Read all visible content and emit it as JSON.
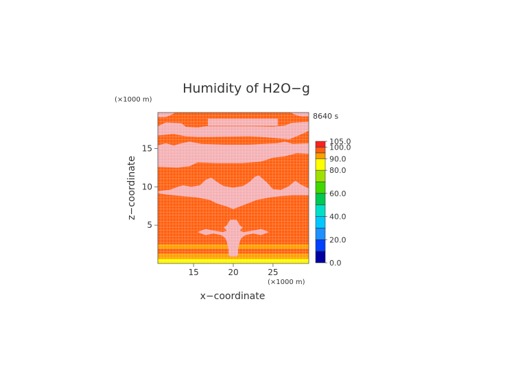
{
  "chart_data": {
    "type": "heatmap",
    "title": "Humidity of H2O−g",
    "xlabel": "x−coordinate",
    "ylabel": "z−coordinate",
    "x_unit": "(×1000 m)",
    "y_unit": "(×1000 m)",
    "time_label": "8640 s",
    "xlim": [
      10.5,
      29.5
    ],
    "ylim": [
      0,
      19.7
    ],
    "x_ticks": [
      "15",
      "20",
      "25"
    ],
    "x_tick_values": [
      15,
      20,
      25
    ],
    "y_ticks": [
      "5",
      "10",
      "15"
    ],
    "y_tick_values": [
      5,
      10,
      15
    ],
    "grid": true,
    "grid_x": [
      10.5,
      10.88,
      11.26,
      11.64,
      12.02,
      12.4,
      12.78,
      13.16,
      13.54,
      13.92,
      14.3,
      14.68,
      15.06,
      15.44,
      15.82,
      16.2,
      16.58,
      16.96,
      17.34,
      17.72,
      18.1,
      18.48,
      18.86,
      19.24,
      19.62,
      20.0,
      20.38,
      20.76,
      21.14,
      21.52,
      21.9,
      22.28,
      22.66,
      23.04,
      23.42,
      23.8,
      24.18,
      24.56,
      24.94,
      25.32,
      25.7,
      26.08,
      26.46,
      26.84,
      27.22,
      27.6,
      27.98,
      28.36,
      28.74,
      29.12,
      29.5
    ],
    "grid_z": [
      0.0,
      0.39,
      0.79,
      1.18,
      1.58,
      1.97,
      2.36,
      2.76,
      3.15,
      3.55,
      3.94,
      4.33,
      4.73,
      5.12,
      5.52,
      5.91,
      6.3,
      6.7,
      7.09,
      7.49,
      7.88,
      8.27,
      8.67,
      9.06,
      9.46,
      9.85,
      10.24,
      10.64,
      11.03,
      11.43,
      11.82,
      12.21,
      12.61,
      13.0,
      13.4,
      13.79,
      14.18,
      14.58,
      14.97,
      15.37,
      15.76,
      16.15,
      16.55,
      16.94,
      17.34,
      17.73,
      18.12,
      18.52,
      18.91,
      19.31,
      19.7
    ],
    "colorbar": {
      "levels": [
        0,
        10,
        20,
        30,
        40,
        50,
        60,
        70,
        80,
        90,
        95,
        100,
        105
      ],
      "colors": [
        "#0000a0",
        "#0040ff",
        "#1e90ff",
        "#00c8ff",
        "#00e0c8",
        "#00c850",
        "#40d800",
        "#a0e000",
        "#ffff00",
        "#ffa000",
        "#ff6010",
        "#ff2020",
        "#ffffff"
      ],
      "tick_labels": [
        "0.0",
        "20.0",
        "40.0",
        "60.0",
        "80.0",
        "90.0",
        "100.0",
        "105.0"
      ],
      "tick_values": [
        0,
        20,
        40,
        60,
        80,
        90,
        100,
        105
      ]
    },
    "background_value": 97,
    "bands": [
      {
        "z0": 0.0,
        "z1": 0.2,
        "x0": 10.5,
        "x1": 29.5,
        "value": 82
      },
      {
        "z0": 0.2,
        "z1": 0.6,
        "x0": 10.5,
        "x1": 29.5,
        "value": 88
      },
      {
        "z0": 0.6,
        "z1": 1.3,
        "x0": 10.5,
        "x1": 29.5,
        "value": 92
      },
      {
        "z0": 1.3,
        "z1": 1.9,
        "x0": 10.5,
        "x1": 29.5,
        "value": 96
      },
      {
        "z0": 1.9,
        "z1": 2.5,
        "x0": 10.5,
        "x1": 29.5,
        "value": 92
      },
      {
        "z0": 2.5,
        "z1": 2.8,
        "x0": 10.5,
        "x1": 29.5,
        "value": 96
      }
    ],
    "saturated_regions_value": 102,
    "saturated_regions": [
      [
        [
          10.5,
          17.9
        ],
        [
          11.5,
          18.4
        ],
        [
          13.5,
          18.3
        ],
        [
          14.0,
          17.85
        ],
        [
          15.5,
          17.75
        ],
        [
          16.5,
          17.9
        ],
        [
          22.0,
          17.9
        ],
        [
          25.0,
          17.85
        ],
        [
          26.5,
          18.0
        ],
        [
          27.3,
          18.35
        ],
        [
          29.5,
          18.5
        ],
        [
          29.5,
          17.3
        ],
        [
          28.0,
          16.6
        ],
        [
          27.0,
          16.2
        ],
        [
          25.0,
          16.4
        ],
        [
          22.0,
          16.6
        ],
        [
          17.0,
          16.5
        ],
        [
          15.5,
          16.5
        ],
        [
          14.0,
          16.6
        ],
        [
          12.5,
          16.9
        ],
        [
          10.5,
          16.7
        ]
      ],
      [
        [
          10.5,
          15.4
        ],
        [
          11.5,
          15.7
        ],
        [
          12.5,
          15.4
        ],
        [
          13.5,
          15.7
        ],
        [
          14.5,
          15.9
        ],
        [
          16.0,
          15.6
        ],
        [
          19.0,
          15.5
        ],
        [
          22.0,
          15.5
        ],
        [
          25.5,
          15.7
        ],
        [
          26.5,
          15.9
        ],
        [
          27.5,
          15.6
        ],
        [
          29.5,
          15.7
        ],
        [
          29.5,
          14.3
        ],
        [
          28.0,
          14.4
        ],
        [
          26.5,
          14.0
        ],
        [
          25.0,
          13.8
        ],
        [
          23.5,
          13.3
        ],
        [
          21.0,
          13.1
        ],
        [
          18.0,
          13.1
        ],
        [
          15.5,
          13.2
        ],
        [
          14.5,
          12.7
        ],
        [
          13.0,
          12.5
        ],
        [
          10.5,
          12.6
        ]
      ],
      [
        [
          16.8,
          17.95
        ],
        [
          16.8,
          18.9
        ],
        [
          25.6,
          18.9
        ],
        [
          25.6,
          17.95
        ]
      ],
      [
        [
          10.5,
          19.1
        ],
        [
          10.5,
          19.7
        ],
        [
          12.7,
          19.7
        ],
        [
          12.2,
          19.4
        ],
        [
          11.5,
          19.1
        ]
      ],
      [
        [
          29.5,
          19.2
        ],
        [
          29.5,
          19.7
        ],
        [
          27.2,
          19.7
        ],
        [
          27.8,
          19.4
        ],
        [
          28.5,
          19.2
        ]
      ],
      [
        [
          10.5,
          9.2
        ],
        [
          11.5,
          9.0
        ],
        [
          13.5,
          8.8
        ],
        [
          15.5,
          8.6
        ],
        [
          17.0,
          8.3
        ],
        [
          18.0,
          7.8
        ],
        [
          19.0,
          7.5
        ],
        [
          20.0,
          7.1
        ],
        [
          21.0,
          7.5
        ],
        [
          22.0,
          7.9
        ],
        [
          23.0,
          8.3
        ],
        [
          24.5,
          8.6
        ],
        [
          26.0,
          8.8
        ],
        [
          27.5,
          8.9
        ],
        [
          29.5,
          8.9
        ],
        [
          29.5,
          9.8
        ],
        [
          28.5,
          10.3
        ],
        [
          27.8,
          10.8
        ],
        [
          27.0,
          10.1
        ],
        [
          26.0,
          9.6
        ],
        [
          25.0,
          9.7
        ],
        [
          24.2,
          10.6
        ],
        [
          23.2,
          11.5
        ],
        [
          22.7,
          11.3
        ],
        [
          22.0,
          10.6
        ],
        [
          21.2,
          10.1
        ],
        [
          20.0,
          9.9
        ],
        [
          18.8,
          10.1
        ],
        [
          18.0,
          10.6
        ],
        [
          17.5,
          11.0
        ],
        [
          17.2,
          11.2
        ],
        [
          16.5,
          10.9
        ],
        [
          15.8,
          10.2
        ],
        [
          14.7,
          10.0
        ],
        [
          13.7,
          10.2
        ],
        [
          13.0,
          10.0
        ],
        [
          12.0,
          9.6
        ],
        [
          11.0,
          9.5
        ],
        [
          10.5,
          9.4
        ]
      ],
      [
        [
          19.4,
          5.4
        ],
        [
          19.6,
          5.7
        ],
        [
          20.4,
          5.7
        ],
        [
          20.6,
          5.4
        ],
        [
          20.8,
          5.0
        ],
        [
          21.2,
          4.7
        ],
        [
          20.8,
          4.3
        ],
        [
          21.3,
          4.1
        ],
        [
          22.5,
          4.3
        ],
        [
          23.5,
          4.5
        ],
        [
          24.5,
          4.1
        ],
        [
          23.5,
          3.7
        ],
        [
          22.5,
          3.9
        ],
        [
          21.5,
          3.7
        ],
        [
          21.0,
          3.3
        ],
        [
          20.8,
          2.8
        ],
        [
          20.6,
          1.8
        ],
        [
          20.6,
          1.1
        ],
        [
          20.4,
          0.9
        ],
        [
          19.6,
          0.9
        ],
        [
          19.4,
          1.1
        ],
        [
          19.4,
          1.8
        ],
        [
          19.2,
          2.8
        ],
        [
          19.0,
          3.3
        ],
        [
          18.5,
          3.7
        ],
        [
          17.5,
          3.9
        ],
        [
          16.5,
          3.7
        ],
        [
          15.5,
          4.1
        ],
        [
          16.5,
          4.5
        ],
        [
          17.5,
          4.3
        ],
        [
          18.7,
          4.1
        ],
        [
          19.2,
          4.3
        ],
        [
          18.8,
          4.7
        ],
        [
          19.2,
          5.0
        ]
      ]
    ]
  }
}
